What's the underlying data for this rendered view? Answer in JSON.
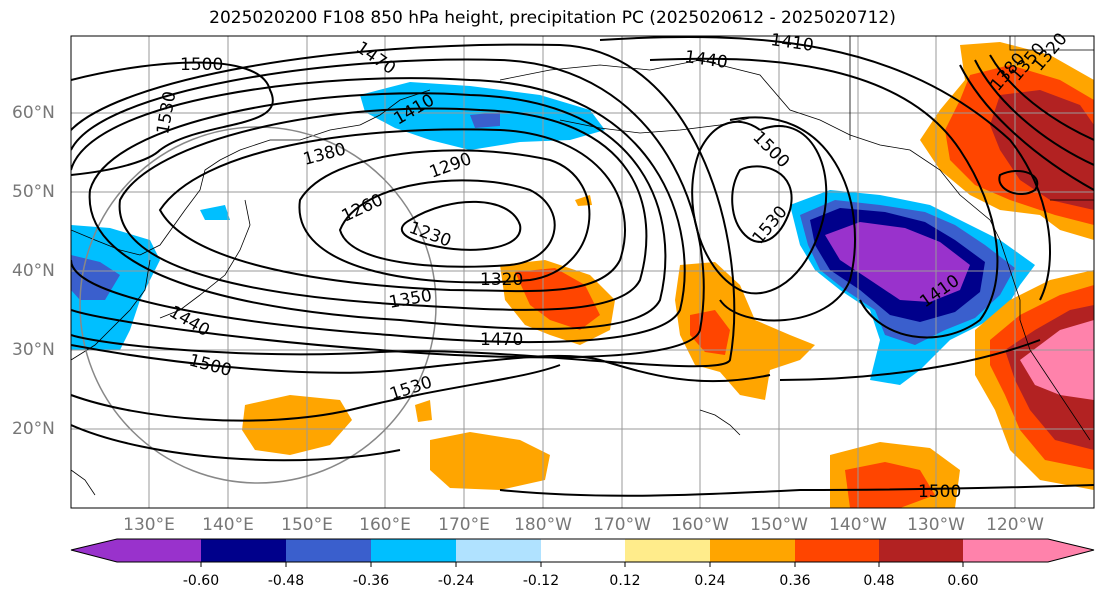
{
  "title": "2025020200 F108 850 hPa height, precipitation PC (2025020612 - 2025020712)",
  "latitude_labels": [
    "60°N",
    "50°N",
    "40°N",
    "30°N",
    "20°N"
  ],
  "longitude_labels": [
    "130°E",
    "140°E",
    "150°E",
    "160°E",
    "170°E",
    "180°W",
    "170°W",
    "160°W",
    "150°W",
    "140°W",
    "130°W",
    "120°W"
  ],
  "contour_labels": [
    "1500",
    "1530",
    "1470",
    "1410",
    "1380",
    "1290",
    "1260",
    "1230",
    "1320",
    "1350",
    "1440",
    "1470",
    "1500",
    "1530",
    "1440",
    "1410",
    "1500",
    "1530",
    "1410",
    "1320",
    "1350",
    "1380",
    "1500"
  ],
  "colorbar": {
    "tick_labels": [
      "-0.60",
      "-0.48",
      "-0.36",
      "-0.24",
      "-0.12",
      "0.12",
      "0.24",
      "0.36",
      "0.48",
      "0.60"
    ],
    "colors": [
      "#9932cc",
      "#00008b",
      "#3a5fcd",
      "#00bfff",
      "#b0e2ff",
      "#ffffff",
      "#ffec8b",
      "#ffa500",
      "#ff4500",
      "#b22222",
      "#ff82ab"
    ]
  }
}
